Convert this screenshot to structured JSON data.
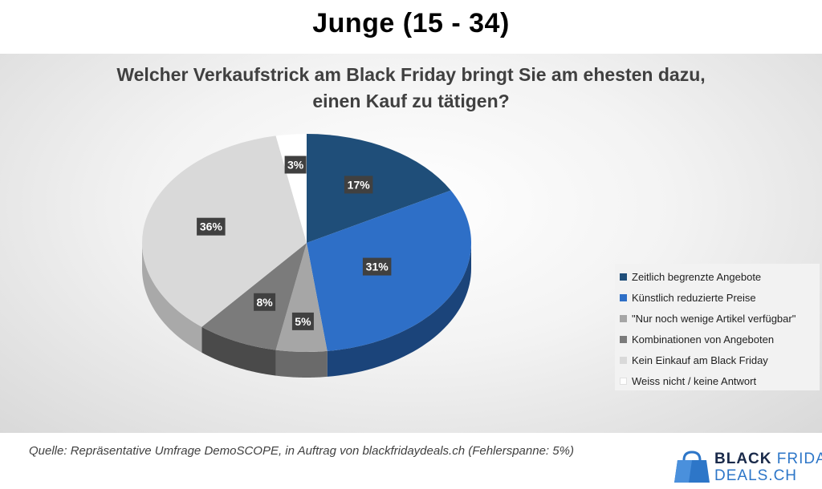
{
  "page_title": "Junge (15 - 34)",
  "chart_data": {
    "type": "pie",
    "title_lines": [
      "Welcher Verkaufstrick am Black Friday bringt Sie am ehesten dazu,",
      "einen Kauf zu tätigen?"
    ],
    "categories": [
      "Zeitlich begrenzte Angebote",
      "Künstlich reduzierte Preise",
      "\"Nur noch wenige Artikel verfügbar\"",
      "Kombinationen von Angeboten",
      "Kein Einkauf am Black Friday",
      "Weiss nicht / keine Antwort"
    ],
    "values": [
      17,
      31,
      5,
      8,
      36,
      3
    ],
    "data_labels": [
      "17%",
      "31%",
      "5%",
      "8%",
      "36%",
      "3%"
    ],
    "colors": [
      "#1f4e79",
      "#2e6fc7",
      "#a6a6a6",
      "#7b7b7b",
      "#d9d9d9",
      "#ffffff"
    ],
    "side_colors": [
      "#132f4a",
      "#1b447a",
      "#6a6a6a",
      "#4a4a4a",
      "#a9a9a9",
      "#d0d0d0"
    ],
    "legend_position": "right",
    "style": "3d"
  },
  "source_text": "Quelle: Repräsentative Umfrage DemoSCOPE, in Auftrag von blackfridaydeals.ch (Fehlerspanne: 5%)",
  "logo": {
    "word1": "BLACK",
    "word2": "FRIDAY",
    "word3": "DEALS.CH",
    "colors": {
      "dark": "#1a2a4a",
      "accent": "#2d76c8"
    }
  }
}
